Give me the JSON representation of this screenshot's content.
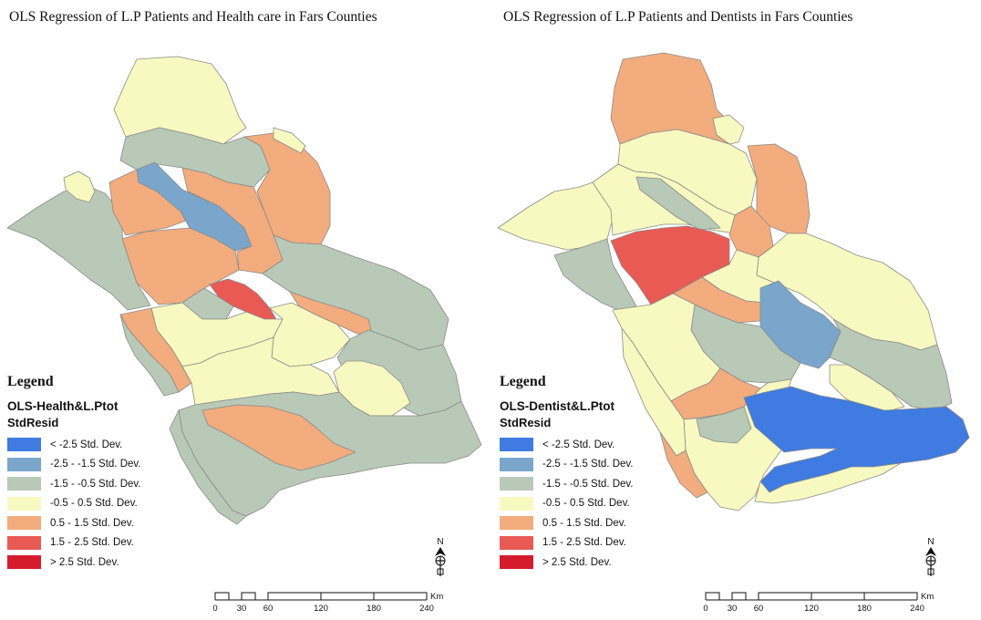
{
  "legend_classes": [
    {
      "label": "< -2.5 Std. Dev.",
      "color": "#3f7be0"
    },
    {
      "label": "-2.5 - -1.5 Std. Dev.",
      "color": "#7aa6cc"
    },
    {
      "label": "-1.5 - -0.5 Std. Dev.",
      "color": "#b9c9b7"
    },
    {
      "label": "-0.5 - 0.5 Std. Dev.",
      "color": "#f8f9c0"
    },
    {
      "label": "0.5 - 1.5 Std. Dev.",
      "color": "#f2ac7e"
    },
    {
      "label": "1.5 - 2.5 Std. Dev.",
      "color": "#e95a55"
    },
    {
      "label": "> 2.5 Std. Dev.",
      "color": "#d51c2d"
    }
  ],
  "maps": [
    {
      "title": "OLS Regression of  L.P Patients and Health care in Fars Counties",
      "legend_heading": "Legend",
      "layer_name": "OLS-Health&L.Ptot",
      "field_name": "StdResid"
    },
    {
      "title": "OLS Regression of  L.P Patients and Dentists in Fars Counties",
      "legend_heading": "Legend",
      "layer_name": "OLS-Dentist&L.Ptot",
      "field_name": "StdResid"
    }
  ],
  "scale": {
    "ticks": [
      "0",
      "30",
      "60",
      "120",
      "180",
      "240"
    ],
    "unit": "Km"
  },
  "north_label": "N"
}
